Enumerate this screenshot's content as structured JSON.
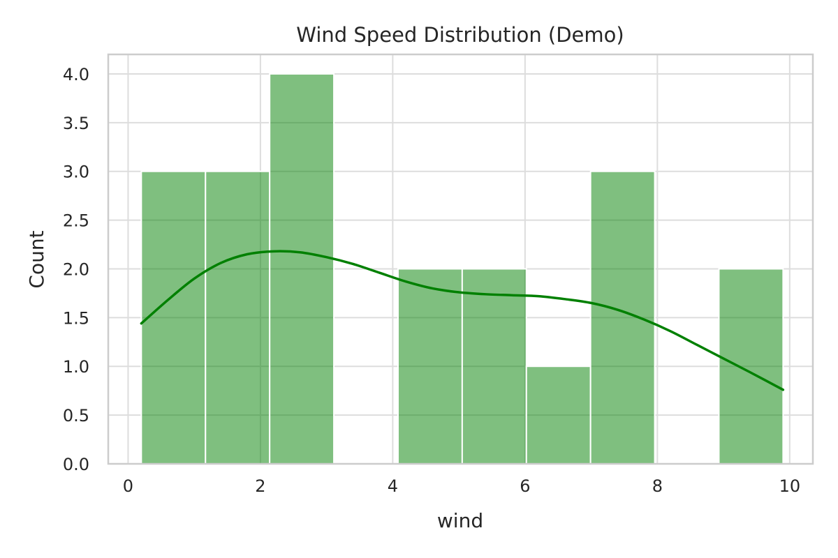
{
  "chart_data": {
    "type": "bar",
    "title": "Wind Speed Distribution (Demo)",
    "xlabel": "wind",
    "ylabel": "Count",
    "xlim": [
      -0.3,
      10.35
    ],
    "ylim": [
      0,
      4.2
    ],
    "xticks": [
      0,
      2,
      4,
      6,
      8,
      10
    ],
    "yticks": [
      0.0,
      0.5,
      1.0,
      1.5,
      2.0,
      2.5,
      3.0,
      3.5,
      4.0
    ],
    "ytick_labels": [
      "0.0",
      "0.5",
      "1.0",
      "1.5",
      "2.0",
      "2.5",
      "3.0",
      "3.5",
      "4.0"
    ],
    "grid": true,
    "bar_color": "#008000",
    "line_color": "#008000",
    "bins": [
      {
        "start": 0.2,
        "end": 1.17,
        "count": 3
      },
      {
        "start": 1.17,
        "end": 2.14,
        "count": 3
      },
      {
        "start": 2.14,
        "end": 3.11,
        "count": 4
      },
      {
        "start": 3.11,
        "end": 4.08,
        "count": 0
      },
      {
        "start": 4.08,
        "end": 5.05,
        "count": 2
      },
      {
        "start": 5.05,
        "end": 6.02,
        "count": 2
      },
      {
        "start": 6.02,
        "end": 6.99,
        "count": 1
      },
      {
        "start": 6.99,
        "end": 7.96,
        "count": 3
      },
      {
        "start": 7.96,
        "end": 8.93,
        "count": 0
      },
      {
        "start": 8.93,
        "end": 9.9,
        "count": 2
      }
    ],
    "kde": {
      "x": [
        0.2,
        0.6,
        1.0,
        1.4,
        1.8,
        2.2,
        2.6,
        3.0,
        3.4,
        3.8,
        4.2,
        4.6,
        5.0,
        5.4,
        5.8,
        6.2,
        6.6,
        7.0,
        7.4,
        7.8,
        8.2,
        8.6,
        9.0,
        9.4,
        9.9
      ],
      "y": [
        1.44,
        1.68,
        1.9,
        2.06,
        2.15,
        2.18,
        2.17,
        2.12,
        2.05,
        1.96,
        1.87,
        1.8,
        1.76,
        1.74,
        1.73,
        1.72,
        1.69,
        1.65,
        1.58,
        1.48,
        1.36,
        1.22,
        1.08,
        0.94,
        0.76
      ]
    }
  }
}
